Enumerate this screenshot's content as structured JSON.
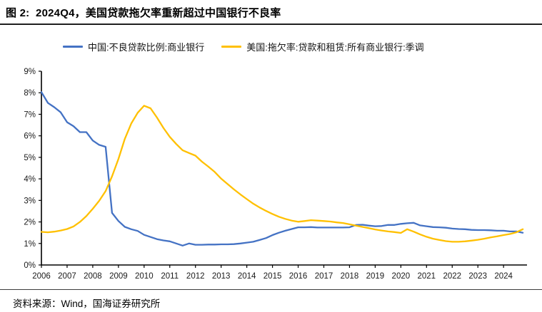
{
  "figure": {
    "source": "资料来源：Wind，国海证券研究所"
  },
  "chart_data": {
    "type": "line",
    "title": "图 2:  2024Q4，美国贷款拖欠率重新超过中国银行不良率",
    "xlabel": "",
    "ylabel": "",
    "grid": false,
    "legend_position": "top",
    "ylim": [
      0,
      9
    ],
    "y_tick_labels": [
      "0%",
      "1%",
      "2%",
      "3%",
      "4%",
      "5%",
      "6%",
      "7%",
      "8%",
      "9%"
    ],
    "x_tick_labels": [
      "2006",
      "2007",
      "2008",
      "2009",
      "2010",
      "2011",
      "2012",
      "2013",
      "2014",
      "2015",
      "2016",
      "2017",
      "2018",
      "2019",
      "2020",
      "2021",
      "2022",
      "2023",
      "2024"
    ],
    "x_start": 2006,
    "x_step": 0.25,
    "x_unit": "quarterly",
    "series": [
      {
        "name": "中国:不良贷款比例:商业银行",
        "color": "#4472C4",
        "values": [
          8.03,
          7.53,
          7.33,
          7.09,
          6.63,
          6.45,
          6.17,
          6.17,
          5.78,
          5.58,
          5.49,
          2.42,
          2.04,
          1.77,
          1.66,
          1.58,
          1.4,
          1.3,
          1.2,
          1.14,
          1.1,
          1.0,
          0.9,
          1.0,
          0.94,
          0.94,
          0.95,
          0.95,
          0.96,
          0.96,
          0.97,
          1.0,
          1.04,
          1.08,
          1.16,
          1.25,
          1.39,
          1.5,
          1.59,
          1.67,
          1.75,
          1.75,
          1.76,
          1.74,
          1.74,
          1.74,
          1.74,
          1.74,
          1.75,
          1.86,
          1.87,
          1.83,
          1.8,
          1.81,
          1.86,
          1.86,
          1.91,
          1.94,
          1.96,
          1.84,
          1.8,
          1.76,
          1.75,
          1.73,
          1.69,
          1.67,
          1.66,
          1.63,
          1.62,
          1.62,
          1.61,
          1.59,
          1.59,
          1.56,
          1.56,
          1.5
        ]
      },
      {
        "name": "美国:拖欠率:贷款和租赁:所有商业银行:季调",
        "color": "#FFC000",
        "values": [
          1.54,
          1.52,
          1.55,
          1.6,
          1.67,
          1.79,
          2.0,
          2.27,
          2.61,
          2.98,
          3.43,
          4.12,
          4.93,
          5.86,
          6.57,
          7.07,
          7.4,
          7.28,
          6.85,
          6.37,
          5.95,
          5.62,
          5.33,
          5.2,
          5.08,
          4.8,
          4.57,
          4.32,
          4.01,
          3.76,
          3.51,
          3.28,
          3.06,
          2.85,
          2.67,
          2.51,
          2.37,
          2.24,
          2.14,
          2.06,
          2.01,
          2.04,
          2.08,
          2.06,
          2.04,
          2.02,
          1.98,
          1.95,
          1.89,
          1.83,
          1.77,
          1.71,
          1.65,
          1.6,
          1.56,
          1.53,
          1.49,
          1.66,
          1.55,
          1.42,
          1.31,
          1.22,
          1.16,
          1.11,
          1.08,
          1.08,
          1.1,
          1.13,
          1.17,
          1.22,
          1.28,
          1.33,
          1.39,
          1.44,
          1.52,
          1.66
        ]
      }
    ]
  }
}
